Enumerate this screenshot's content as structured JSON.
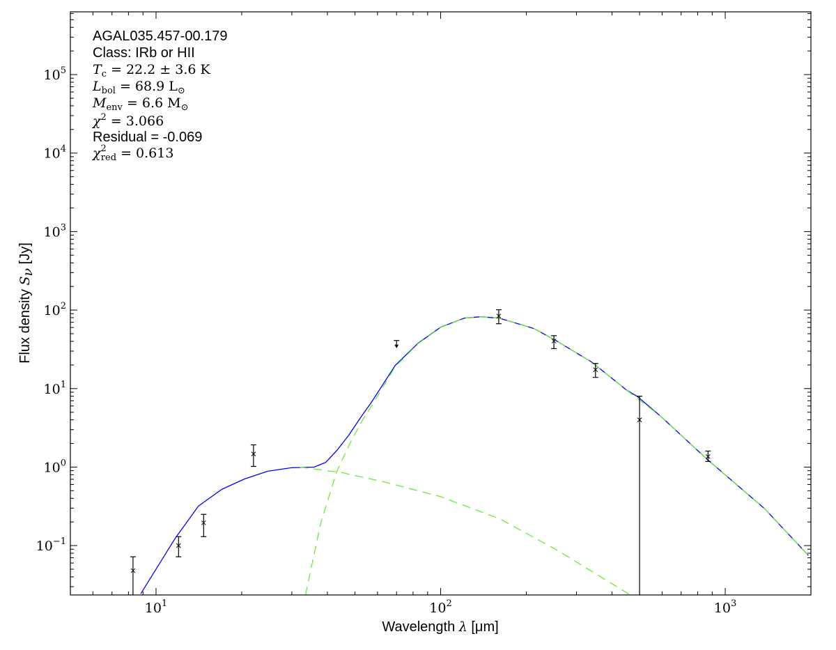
{
  "chart_data": {
    "type": "line",
    "x_scale": "log",
    "y_scale": "log",
    "xlim": [
      5,
      2000
    ],
    "ylim": [
      0.0235,
      630000
    ],
    "grid": false,
    "xlabel": {
      "text": "Wavelength ",
      "symbol": "λ",
      "unit": " [μm]"
    },
    "ylabel": {
      "text": "Flux density ",
      "symbol": "S",
      "sub": "ν",
      "unit": " [Jy]"
    },
    "x_ticks": [
      {
        "value": 10,
        "base": "10",
        "exp": "1"
      },
      {
        "value": 100,
        "base": "10",
        "exp": "2"
      },
      {
        "value": 1000,
        "base": "10",
        "exp": "3"
      }
    ],
    "y_ticks": [
      {
        "value": 0.1,
        "base": "10",
        "exp": "−1"
      },
      {
        "value": 1,
        "base": "10",
        "exp": "0"
      },
      {
        "value": 10,
        "base": "10",
        "exp": "1"
      },
      {
        "value": 100,
        "base": "10",
        "exp": "2"
      },
      {
        "value": 1000,
        "base": "10",
        "exp": "3"
      },
      {
        "value": 10000,
        "base": "10",
        "exp": "4"
      },
      {
        "value": 100000,
        "base": "10",
        "exp": "5"
      }
    ],
    "annotation": {
      "source": "AGAL035.457-00.179",
      "class": "Class: IRb or HII",
      "tc": {
        "sym": "T",
        "sub": "c",
        "rest": " = 22.2 ± 3.6 K"
      },
      "lbol": {
        "sym": "L",
        "sub": "bol",
        "rest": " = 68.9 L",
        "sun": "⊙"
      },
      "menv": {
        "sym": "M",
        "sub": "env",
        "rest": " = 6.6 M",
        "sun": "⊙"
      },
      "chi2": {
        "sym": "χ",
        "sup": "2",
        "rest": " = 3.066"
      },
      "residual": "Residual = -0.069",
      "chi2red": {
        "sym": "χ",
        "sup": "2",
        "sub": "red",
        "rest": " = 0.613"
      }
    },
    "colors": {
      "total_fit": "#0000ff",
      "components": "#66ee33",
      "data": "#000000"
    },
    "points": [
      {
        "x": 8.3,
        "y": 0.048,
        "lo": 0.02,
        "hi": 0.072
      },
      {
        "x": 12,
        "y": 0.1,
        "lo": 0.072,
        "hi": 0.13
      },
      {
        "x": 14.7,
        "y": 0.195,
        "lo": 0.13,
        "hi": 0.25
      },
      {
        "x": 22,
        "y": 1.47,
        "lo": 1.02,
        "hi": 1.92
      },
      {
        "x": 160,
        "y": 84,
        "lo": 67,
        "hi": 101
      },
      {
        "x": 250,
        "y": 40.3,
        "lo": 32.3,
        "hi": 47.2
      },
      {
        "x": 350,
        "y": 17.4,
        "lo": 13.9,
        "hi": 20.9
      },
      {
        "x": 500,
        "y": 4.0,
        "lo": 0.0,
        "hi": 8.0
      },
      {
        "x": 870,
        "y": 1.36,
        "lo": 1.18,
        "hi": 1.6
      }
    ],
    "upper_limits": [
      {
        "x": 70,
        "y": 41
      }
    ],
    "series": [
      {
        "style": "solid",
        "color": "#0000ff",
        "points": [
          [
            8.84,
            0.0244
          ],
          [
            11.7,
            0.125
          ],
          [
            14.1,
            0.319
          ],
          [
            17.0,
            0.52
          ],
          [
            20.5,
            0.707
          ],
          [
            24.7,
            0.885
          ],
          [
            29.9,
            0.98
          ],
          [
            35.9,
            1.0
          ],
          [
            39.5,
            1.15
          ],
          [
            43.2,
            1.63
          ],
          [
            47.6,
            2.56
          ],
          [
            52.3,
            4.26
          ],
          [
            57.3,
            6.81
          ],
          [
            69.2,
            19.7
          ],
          [
            83.3,
            37.8
          ],
          [
            100,
            60.5
          ],
          [
            121,
            78.9
          ],
          [
            138,
            82.2
          ],
          [
            161,
            78.9
          ],
          [
            213,
            58.1
          ],
          [
            256,
            40.3
          ],
          [
            339,
            21.8
          ],
          [
            449,
            9.64
          ],
          [
            493,
            7.86
          ],
          [
            593,
            4.44
          ],
          [
            865,
            1.25
          ],
          [
            1377,
            0.294
          ],
          [
            1960,
            0.0748
          ]
        ]
      },
      {
        "style": "dashed",
        "color": "#66ee33",
        "points": [
          [
            32,
            1.0
          ],
          [
            45,
            0.85
          ],
          [
            63,
            0.65
          ],
          [
            100,
            0.42
          ],
          [
            161,
            0.22
          ],
          [
            256,
            0.088
          ],
          [
            464,
            0.0235
          ]
        ]
      },
      {
        "style": "dashed",
        "color": "#66ee33",
        "points": [
          [
            33.5,
            0.0235
          ],
          [
            38,
            0.2
          ],
          [
            43.2,
            0.885
          ],
          [
            48,
            2.0
          ],
          [
            53.2,
            4.0
          ],
          [
            57.3,
            6.1
          ],
          [
            69.2,
            19.0
          ],
          [
            83.3,
            37.3
          ],
          [
            100,
            60.1
          ],
          [
            121,
            78.6
          ],
          [
            138,
            82.0
          ],
          [
            161,
            78.7
          ],
          [
            213,
            58.0
          ],
          [
            256,
            40.3
          ],
          [
            339,
            21.8
          ],
          [
            449,
            9.64
          ],
          [
            593,
            4.44
          ],
          [
            865,
            1.25
          ],
          [
            1377,
            0.294
          ],
          [
            1960,
            0.0748
          ]
        ]
      }
    ]
  }
}
